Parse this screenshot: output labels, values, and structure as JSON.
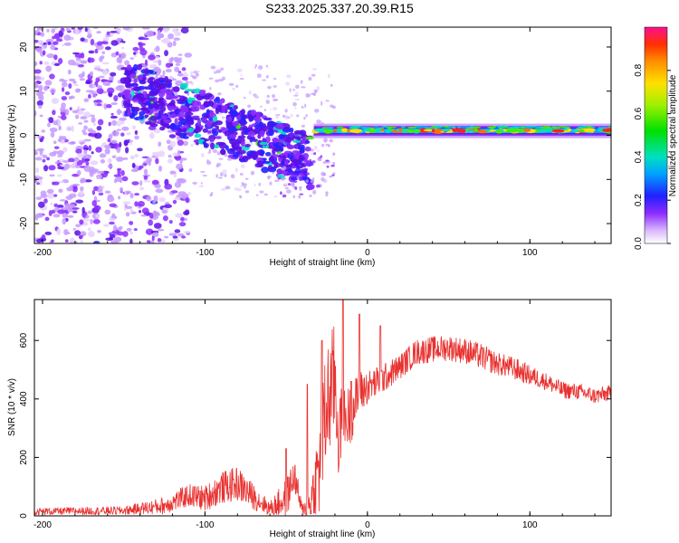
{
  "title": "S233.2025.337.20.39.R15",
  "colors": {
    "snr_line": "#e8312f",
    "frame": "#000000"
  },
  "chart_data": [
    {
      "type": "heatmap",
      "xlabel": "Height of straight line (km)",
      "ylabel": "Frequency (Hz)",
      "xlim": [
        -205,
        150
      ],
      "ylim": [
        -24.5,
        24.5
      ],
      "x_ticks": [
        -200,
        -100,
        0,
        100
      ],
      "x_tick_labels": [
        "-200",
        "-100",
        "0",
        "100"
      ],
      "y_ticks": [
        -20,
        -10,
        0,
        10,
        20
      ],
      "y_tick_labels": [
        "-20",
        "-10",
        "0",
        "10",
        "20"
      ],
      "colorbar": {
        "label": "Normalized spectral amplitude",
        "range": [
          0.0,
          1.0
        ],
        "ticks": [
          0.0,
          0.2,
          0.4,
          0.6,
          0.8
        ],
        "tick_labels": [
          "0.0",
          "0.2",
          "0.4",
          "0.6",
          "0.8"
        ]
      },
      "features": {
        "band_frequency_hz": 1.0,
        "band_start_km": -33,
        "band_end_km": 150,
        "diagonal_start_km": -150,
        "diagonal_start_hz": 11,
        "diagonal_end_km": -35,
        "diagonal_end_hz": -6
      }
    },
    {
      "type": "line",
      "xlabel": "Height of straight line (km)",
      "ylabel": "SNR (10 * v/v)",
      "xlim": [
        -205,
        150
      ],
      "ylim": [
        0,
        740
      ],
      "x_ticks": [
        -200,
        -100,
        0,
        100
      ],
      "x_tick_labels": [
        "-200",
        "-100",
        "0",
        "100"
      ],
      "y_ticks": [
        0,
        200,
        400,
        600
      ],
      "y_tick_labels": [
        "0",
        "200",
        "400",
        "600"
      ],
      "series": [
        {
          "name": "SNR",
          "x": [
            -205,
            -150,
            -125,
            -110,
            -100,
            -90,
            -80,
            -70,
            -60,
            -50,
            -45,
            -40,
            -35,
            -30,
            -25,
            -20,
            -18,
            -15,
            -10,
            -5,
            0,
            10,
            20,
            30,
            40,
            50,
            60,
            70,
            80,
            90,
            100,
            110,
            120,
            130,
            140,
            150
          ],
          "y": [
            15,
            18,
            35,
            70,
            60,
            95,
            110,
            65,
            25,
            60,
            140,
            10,
            40,
            150,
            380,
            470,
            280,
            320,
            350,
            420,
            440,
            470,
            510,
            560,
            570,
            575,
            565,
            545,
            520,
            505,
            480,
            460,
            430,
            425,
            410,
            420
          ],
          "noise_amplitude": [
            12,
            15,
            30,
            40,
            45,
            55,
            60,
            45,
            25,
            70,
            60,
            30,
            80,
            180,
            220,
            200,
            160,
            120,
            100,
            80,
            60,
            50,
            45,
            45,
            45,
            45,
            45,
            45,
            40,
            40,
            35,
            30,
            30,
            28,
            28,
            28
          ],
          "spikes": [
            [
              -50,
              230
            ],
            [
              -37,
              450
            ],
            [
              -28,
              600
            ],
            [
              -15,
              740
            ],
            [
              -10,
              460
            ],
            [
              -5,
              690
            ],
            [
              8,
              650
            ]
          ]
        }
      ]
    }
  ]
}
